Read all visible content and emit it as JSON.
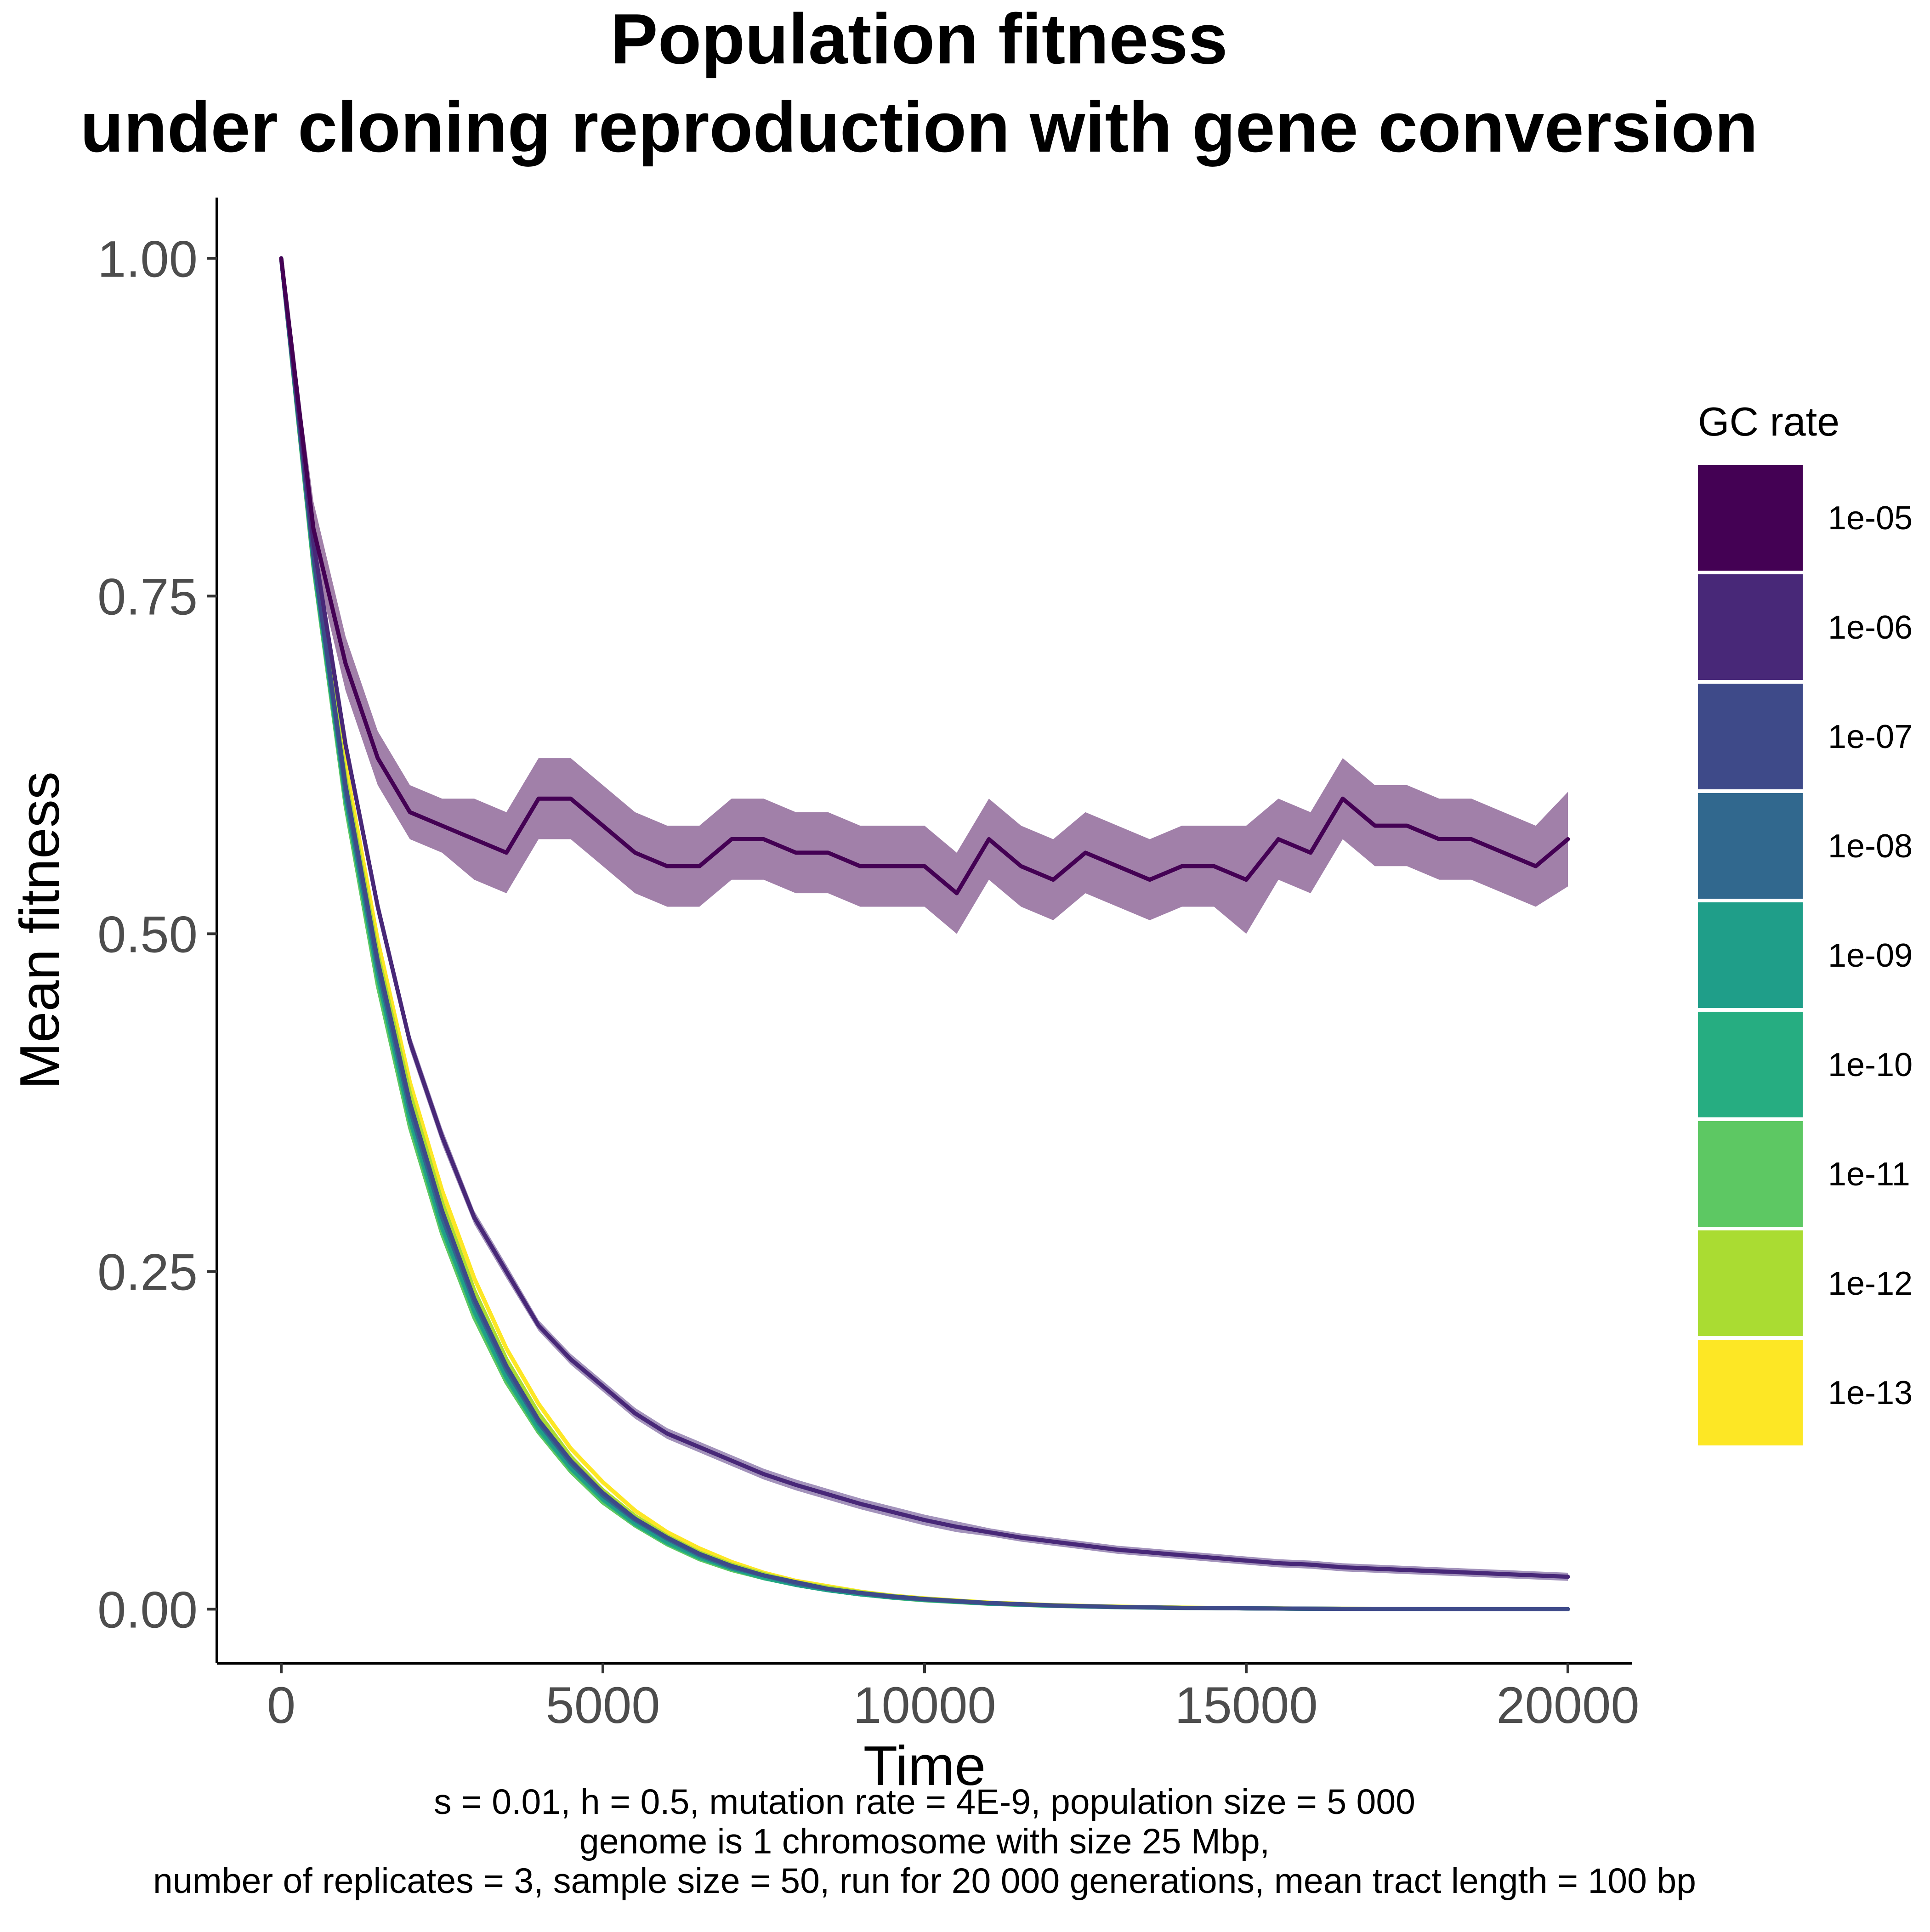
{
  "chart_data": {
    "type": "line",
    "title_line1": "Population fitness",
    "title_line2": "under cloning reproduction with gene conversion",
    "xlabel": "Time",
    "ylabel": "Mean fitness",
    "xlim": [
      -1000,
      21000
    ],
    "ylim": [
      -0.04,
      1.045
    ],
    "x_ticks": [
      0,
      5000,
      10000,
      15000,
      20000
    ],
    "x_tick_labels": [
      "0",
      "5000",
      "10000",
      "15000",
      "20000"
    ],
    "y_ticks": [
      0,
      0.25,
      0.5,
      0.75,
      1.0
    ],
    "y_tick_labels": [
      "0.00",
      "0.25",
      "0.50",
      "0.75",
      "1.00"
    ],
    "grid": false,
    "legend": {
      "title": "GC rate",
      "position": "right",
      "entries": [
        "1e-05",
        "1e-06",
        "1e-07",
        "1e-08",
        "1e-09",
        "1e-10",
        "1e-11",
        "1e-12",
        "1e-13"
      ]
    },
    "caption_lines": [
      "s = 0.01, h = 0.5, mutation rate = 4E-9, population size = 5 000",
      "genome is 1 chromosome with size 25 Mbp,",
      "number of replicates = 3, sample size = 50, run for 20 000 generations, mean tract length = 100 bp"
    ],
    "series": [
      {
        "name": "1e-05",
        "color": "#440154",
        "ribbon": true,
        "x": [
          0,
          500,
          1000,
          1500,
          2000,
          2500,
          3000,
          3500,
          4000,
          4500,
          5000,
          5500,
          6000,
          6500,
          7000,
          7500,
          8000,
          8500,
          9000,
          9500,
          10000,
          10500,
          11000,
          11500,
          12000,
          12500,
          13000,
          13500,
          14000,
          14500,
          15000,
          15500,
          16000,
          16500,
          17000,
          17500,
          18000,
          18500,
          19000,
          19500,
          20000
        ],
        "values": [
          1.0,
          0.8,
          0.7,
          0.63,
          0.59,
          0.58,
          0.57,
          0.56,
          0.6,
          0.6,
          0.58,
          0.56,
          0.55,
          0.55,
          0.57,
          0.57,
          0.56,
          0.56,
          0.55,
          0.55,
          0.55,
          0.53,
          0.57,
          0.55,
          0.54,
          0.56,
          0.55,
          0.54,
          0.55,
          0.55,
          0.54,
          0.57,
          0.56,
          0.6,
          0.58,
          0.58,
          0.57,
          0.57,
          0.56,
          0.55,
          0.57
        ],
        "spread": [
          0,
          0.02,
          0.02,
          0.02,
          0.02,
          0.02,
          0.03,
          0.03,
          0.03,
          0.03,
          0.03,
          0.03,
          0.03,
          0.03,
          0.03,
          0.03,
          0.03,
          0.03,
          0.03,
          0.03,
          0.03,
          0.03,
          0.03,
          0.03,
          0.03,
          0.03,
          0.03,
          0.03,
          0.03,
          0.03,
          0.04,
          0.03,
          0.03,
          0.03,
          0.03,
          0.03,
          0.03,
          0.03,
          0.03,
          0.03,
          0.035
        ]
      },
      {
        "name": "1e-06",
        "color": "#482878",
        "ribbon": true,
        "x": [
          0,
          500,
          1000,
          1500,
          2000,
          2500,
          3000,
          3500,
          4000,
          4500,
          5000,
          5500,
          6000,
          6500,
          7000,
          7500,
          8000,
          8500,
          9000,
          9500,
          10000,
          10500,
          11000,
          11500,
          12000,
          12500,
          13000,
          13500,
          14000,
          14500,
          15000,
          15500,
          16000,
          16500,
          17000,
          17500,
          18000,
          18500,
          19000,
          19500,
          20000
        ],
        "values": [
          1.0,
          0.79,
          0.64,
          0.52,
          0.42,
          0.35,
          0.29,
          0.25,
          0.21,
          0.185,
          0.165,
          0.145,
          0.13,
          0.12,
          0.11,
          0.1,
          0.092,
          0.085,
          0.078,
          0.072,
          0.066,
          0.061,
          0.057,
          0.053,
          0.05,
          0.047,
          0.044,
          0.042,
          0.04,
          0.038,
          0.036,
          0.034,
          0.033,
          0.031,
          0.03,
          0.029,
          0.028,
          0.027,
          0.026,
          0.025,
          0.024
        ],
        "spread": [
          0,
          0.004,
          0.006,
          0.007,
          0.006,
          0.006,
          0.005,
          0.005,
          0.004,
          0.004,
          0.004,
          0.004,
          0.004,
          0.004,
          0.004,
          0.004,
          0.004,
          0.004,
          0.004,
          0.004,
          0.004,
          0.004,
          0.003,
          0.003,
          0.003,
          0.003,
          0.003,
          0.003,
          0.003,
          0.003,
          0.003,
          0.003,
          0.003,
          0.003,
          0.003,
          0.003,
          0.003,
          0.003,
          0.003,
          0.003,
          0.003
        ]
      },
      {
        "name": "1e-07",
        "color": "#3E4A89",
        "ribbon": false,
        "x": [
          0,
          500,
          1000,
          1500,
          2000,
          2500,
          3000,
          3500,
          4000,
          4500,
          5000,
          5500,
          6000,
          6500,
          7000,
          7500,
          8000,
          8500,
          9000,
          9500,
          10000,
          11000,
          12000,
          13000,
          14000,
          15000,
          16000,
          17000,
          18000,
          19000,
          20000
        ],
        "values": [
          1.0,
          0.78,
          0.61,
          0.48,
          0.375,
          0.295,
          0.23,
          0.18,
          0.14,
          0.11,
          0.086,
          0.067,
          0.053,
          0.041,
          0.032,
          0.025,
          0.02,
          0.015,
          0.012,
          0.0095,
          0.0075,
          0.0046,
          0.0028,
          0.0017,
          0.001,
          0.0006,
          0.0004,
          0.0002,
          0.0001,
          0.0001,
          0.0
        ],
        "spread": []
      },
      {
        "name": "1e-08",
        "color": "#31688E",
        "ribbon": false,
        "x": [
          0,
          500,
          1000,
          1500,
          2000,
          2500,
          3000,
          3500,
          4000,
          4500,
          5000,
          5500,
          6000,
          6500,
          7000,
          7500,
          8000,
          8500,
          9000,
          9500,
          10000,
          11000,
          12000,
          13000,
          14000,
          15000,
          16000,
          17000,
          18000,
          19000,
          20000
        ],
        "values": [
          1.0,
          0.78,
          0.605,
          0.475,
          0.37,
          0.29,
          0.227,
          0.177,
          0.138,
          0.108,
          0.084,
          0.066,
          0.052,
          0.04,
          0.031,
          0.025,
          0.019,
          0.015,
          0.012,
          0.009,
          0.0072,
          0.0044,
          0.0027,
          0.0016,
          0.001,
          0.0006,
          0.0004,
          0.0002,
          0.0001,
          0.0001,
          0.0
        ],
        "spread": []
      },
      {
        "name": "1e-09",
        "color": "#1F9E89",
        "ribbon": false,
        "x": [
          0,
          500,
          1000,
          1500,
          2000,
          2500,
          3000,
          3500,
          4000,
          4500,
          5000,
          5500,
          6000,
          6500,
          7000,
          7500,
          8000,
          8500,
          9000,
          9500,
          10000,
          11000,
          12000,
          13000,
          14000,
          15000,
          16000,
          17000,
          18000,
          19000,
          20000
        ],
        "values": [
          1.0,
          0.775,
          0.6,
          0.47,
          0.365,
          0.285,
          0.222,
          0.173,
          0.135,
          0.105,
          0.082,
          0.064,
          0.05,
          0.039,
          0.03,
          0.024,
          0.018,
          0.014,
          0.011,
          0.0088,
          0.007,
          0.0042,
          0.0026,
          0.0016,
          0.001,
          0.0006,
          0.0004,
          0.0002,
          0.0001,
          0.0001,
          0.0
        ],
        "spread": []
      },
      {
        "name": "1e-10",
        "color": "#26AD81",
        "ribbon": false,
        "x": [
          0,
          500,
          1000,
          1500,
          2000,
          2500,
          3000,
          3500,
          4000,
          4500,
          5000,
          5500,
          6000,
          6500,
          7000,
          7500,
          8000,
          8500,
          9000,
          9500,
          10000,
          11000,
          12000,
          13000,
          14000,
          15000,
          16000,
          17000,
          18000,
          19000,
          20000
        ],
        "values": [
          1.0,
          0.775,
          0.6,
          0.468,
          0.362,
          0.282,
          0.22,
          0.171,
          0.133,
          0.104,
          0.081,
          0.063,
          0.049,
          0.038,
          0.03,
          0.023,
          0.018,
          0.014,
          0.011,
          0.0086,
          0.0068,
          0.0041,
          0.0025,
          0.0015,
          0.0009,
          0.0006,
          0.0003,
          0.0002,
          0.0001,
          0.0001,
          0.0
        ],
        "spread": []
      },
      {
        "name": "1e-11",
        "color": "#5DC863",
        "ribbon": false,
        "x": [
          0,
          500,
          1000,
          1500,
          2000,
          2500,
          3000,
          3500,
          4000,
          4500,
          5000,
          5500,
          6000,
          6500,
          7000,
          7500,
          8000,
          8500,
          9000,
          9500,
          10000,
          11000,
          12000,
          13000,
          14000,
          15000,
          16000,
          17000,
          18000,
          19000,
          20000
        ],
        "values": [
          1.0,
          0.772,
          0.595,
          0.462,
          0.357,
          0.278,
          0.216,
          0.168,
          0.131,
          0.102,
          0.079,
          0.062,
          0.048,
          0.037,
          0.029,
          0.023,
          0.018,
          0.014,
          0.011,
          0.0085,
          0.0066,
          0.004,
          0.0024,
          0.0015,
          0.0009,
          0.0006,
          0.0003,
          0.0002,
          0.0001,
          0.0001,
          0.0
        ],
        "spread": []
      },
      {
        "name": "1e-12",
        "color": "#AADC32",
        "ribbon": false,
        "x": [
          0,
          500,
          1000,
          1500,
          2000,
          2500,
          3000,
          3500,
          4000,
          4500,
          5000,
          5500,
          6000,
          6500,
          7000,
          7500,
          8000,
          8500,
          9000,
          9500,
          10000,
          11000,
          12000,
          13000,
          14000,
          15000,
          16000,
          17000,
          18000,
          19000,
          20000
        ],
        "values": [
          1.0,
          0.785,
          0.615,
          0.485,
          0.382,
          0.301,
          0.236,
          0.185,
          0.145,
          0.113,
          0.088,
          0.069,
          0.054,
          0.042,
          0.033,
          0.026,
          0.02,
          0.016,
          0.0125,
          0.0098,
          0.0077,
          0.0047,
          0.0029,
          0.0018,
          0.0011,
          0.0007,
          0.0004,
          0.0003,
          0.0002,
          0.0001,
          0.0
        ],
        "spread": []
      },
      {
        "name": "1e-13",
        "color": "#FDE725",
        "ribbon": false,
        "x": [
          0,
          500,
          1000,
          1500,
          2000,
          2500,
          3000,
          3500,
          4000,
          4500,
          5000,
          5500,
          6000,
          6500,
          7000,
          7500,
          8000,
          8500,
          9000,
          9500,
          10000,
          11000,
          12000,
          13000,
          14000,
          15000,
          16000,
          17000,
          18000,
          19000,
          20000
        ],
        "values": [
          1.0,
          0.79,
          0.625,
          0.495,
          0.39,
          0.31,
          0.245,
          0.193,
          0.152,
          0.119,
          0.094,
          0.073,
          0.057,
          0.045,
          0.035,
          0.027,
          0.021,
          0.017,
          0.013,
          0.01,
          0.008,
          0.0049,
          0.003,
          0.0019,
          0.0012,
          0.0007,
          0.0004,
          0.0003,
          0.0002,
          0.0001,
          0.0
        ],
        "spread": []
      }
    ]
  }
}
